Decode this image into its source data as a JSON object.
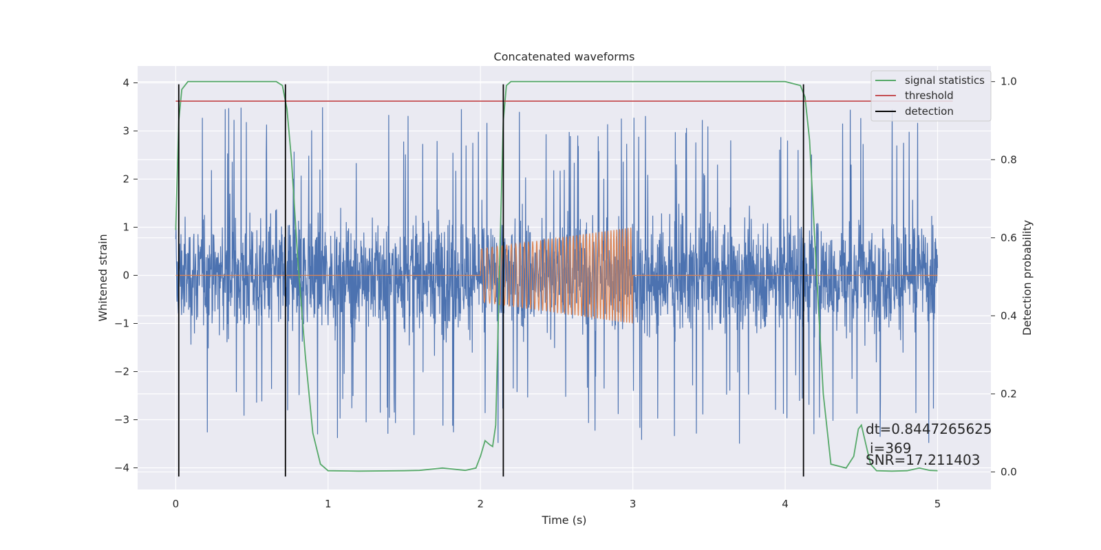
{
  "chart_data": {
    "type": "line",
    "title": "Concatenated waveforms",
    "xlabel": "Time (s)",
    "ylabel": "Whitened strain",
    "ylabel_right": "Detection probability",
    "xlim": [
      -0.25,
      5.35
    ],
    "ylim": [
      -4.45,
      4.35
    ],
    "ylim_right": [
      -0.045,
      1.04
    ],
    "x_ticks": [
      0,
      1,
      2,
      3,
      4,
      5
    ],
    "y_ticks": [
      -4,
      -3,
      -2,
      -1,
      0,
      1,
      2,
      3,
      4
    ],
    "y_ticks_right": [
      0.0,
      0.2,
      0.4,
      0.6,
      0.8,
      1.0
    ],
    "grid": true,
    "legend_position": "top-right",
    "colors": {
      "background": "#eaeaf2",
      "strain": "#4c72b0",
      "template": "#dd8452",
      "signal_statistics": "#55a868",
      "threshold": "#c44e52",
      "detection": "#000000"
    },
    "series": [
      {
        "name": "signal statistics",
        "axis": "right",
        "x": [
          0.0,
          0.02,
          0.04,
          0.08,
          0.2,
          0.5,
          0.66,
          0.7,
          0.73,
          0.76,
          0.8,
          0.85,
          0.9,
          0.95,
          1.0,
          1.2,
          1.5,
          1.6,
          1.75,
          1.8,
          1.9,
          1.97,
          2.0,
          2.03,
          2.06,
          2.08,
          2.1,
          2.13,
          2.15,
          2.17,
          2.2,
          2.3,
          3.0,
          4.0,
          4.1,
          4.13,
          4.16,
          4.2,
          4.25,
          4.3,
          4.4,
          4.45,
          4.48,
          4.5,
          4.53,
          4.56,
          4.6,
          4.7,
          4.8,
          4.88,
          4.95,
          5.0
        ],
        "values": [
          0.62,
          0.9,
          0.98,
          1.0,
          1.0,
          1.0,
          1.0,
          0.99,
          0.93,
          0.8,
          0.55,
          0.3,
          0.1,
          0.02,
          0.003,
          0.002,
          0.003,
          0.004,
          0.01,
          0.008,
          0.004,
          0.01,
          0.04,
          0.08,
          0.07,
          0.065,
          0.12,
          0.6,
          0.9,
          0.99,
          1.0,
          1.0,
          1.0,
          1.0,
          0.99,
          0.96,
          0.85,
          0.55,
          0.2,
          0.02,
          0.01,
          0.04,
          0.11,
          0.12,
          0.07,
          0.02,
          0.003,
          0.002,
          0.003,
          0.01,
          0.004,
          0.003
        ]
      },
      {
        "name": "threshold",
        "axis": "right",
        "x": [
          0.0,
          5.1
        ],
        "values": [
          0.95,
          0.95
        ]
      }
    ],
    "detections": [
      0.02,
      0.72,
      2.15,
      4.12
    ],
    "detection_name": "detection",
    "strain": {
      "x_range": [
        0.0,
        5.0
      ],
      "typical_amplitude": 0.8,
      "max_amplitude": 4.0
    },
    "template": {
      "x_range": [
        2.0,
        3.0
      ],
      "start_amplitude": 0.55,
      "end_amplitude": 1.0
    },
    "annotations": [
      "dt=0.8447265625",
      "i=369",
      "SNR=17.211403"
    ]
  }
}
